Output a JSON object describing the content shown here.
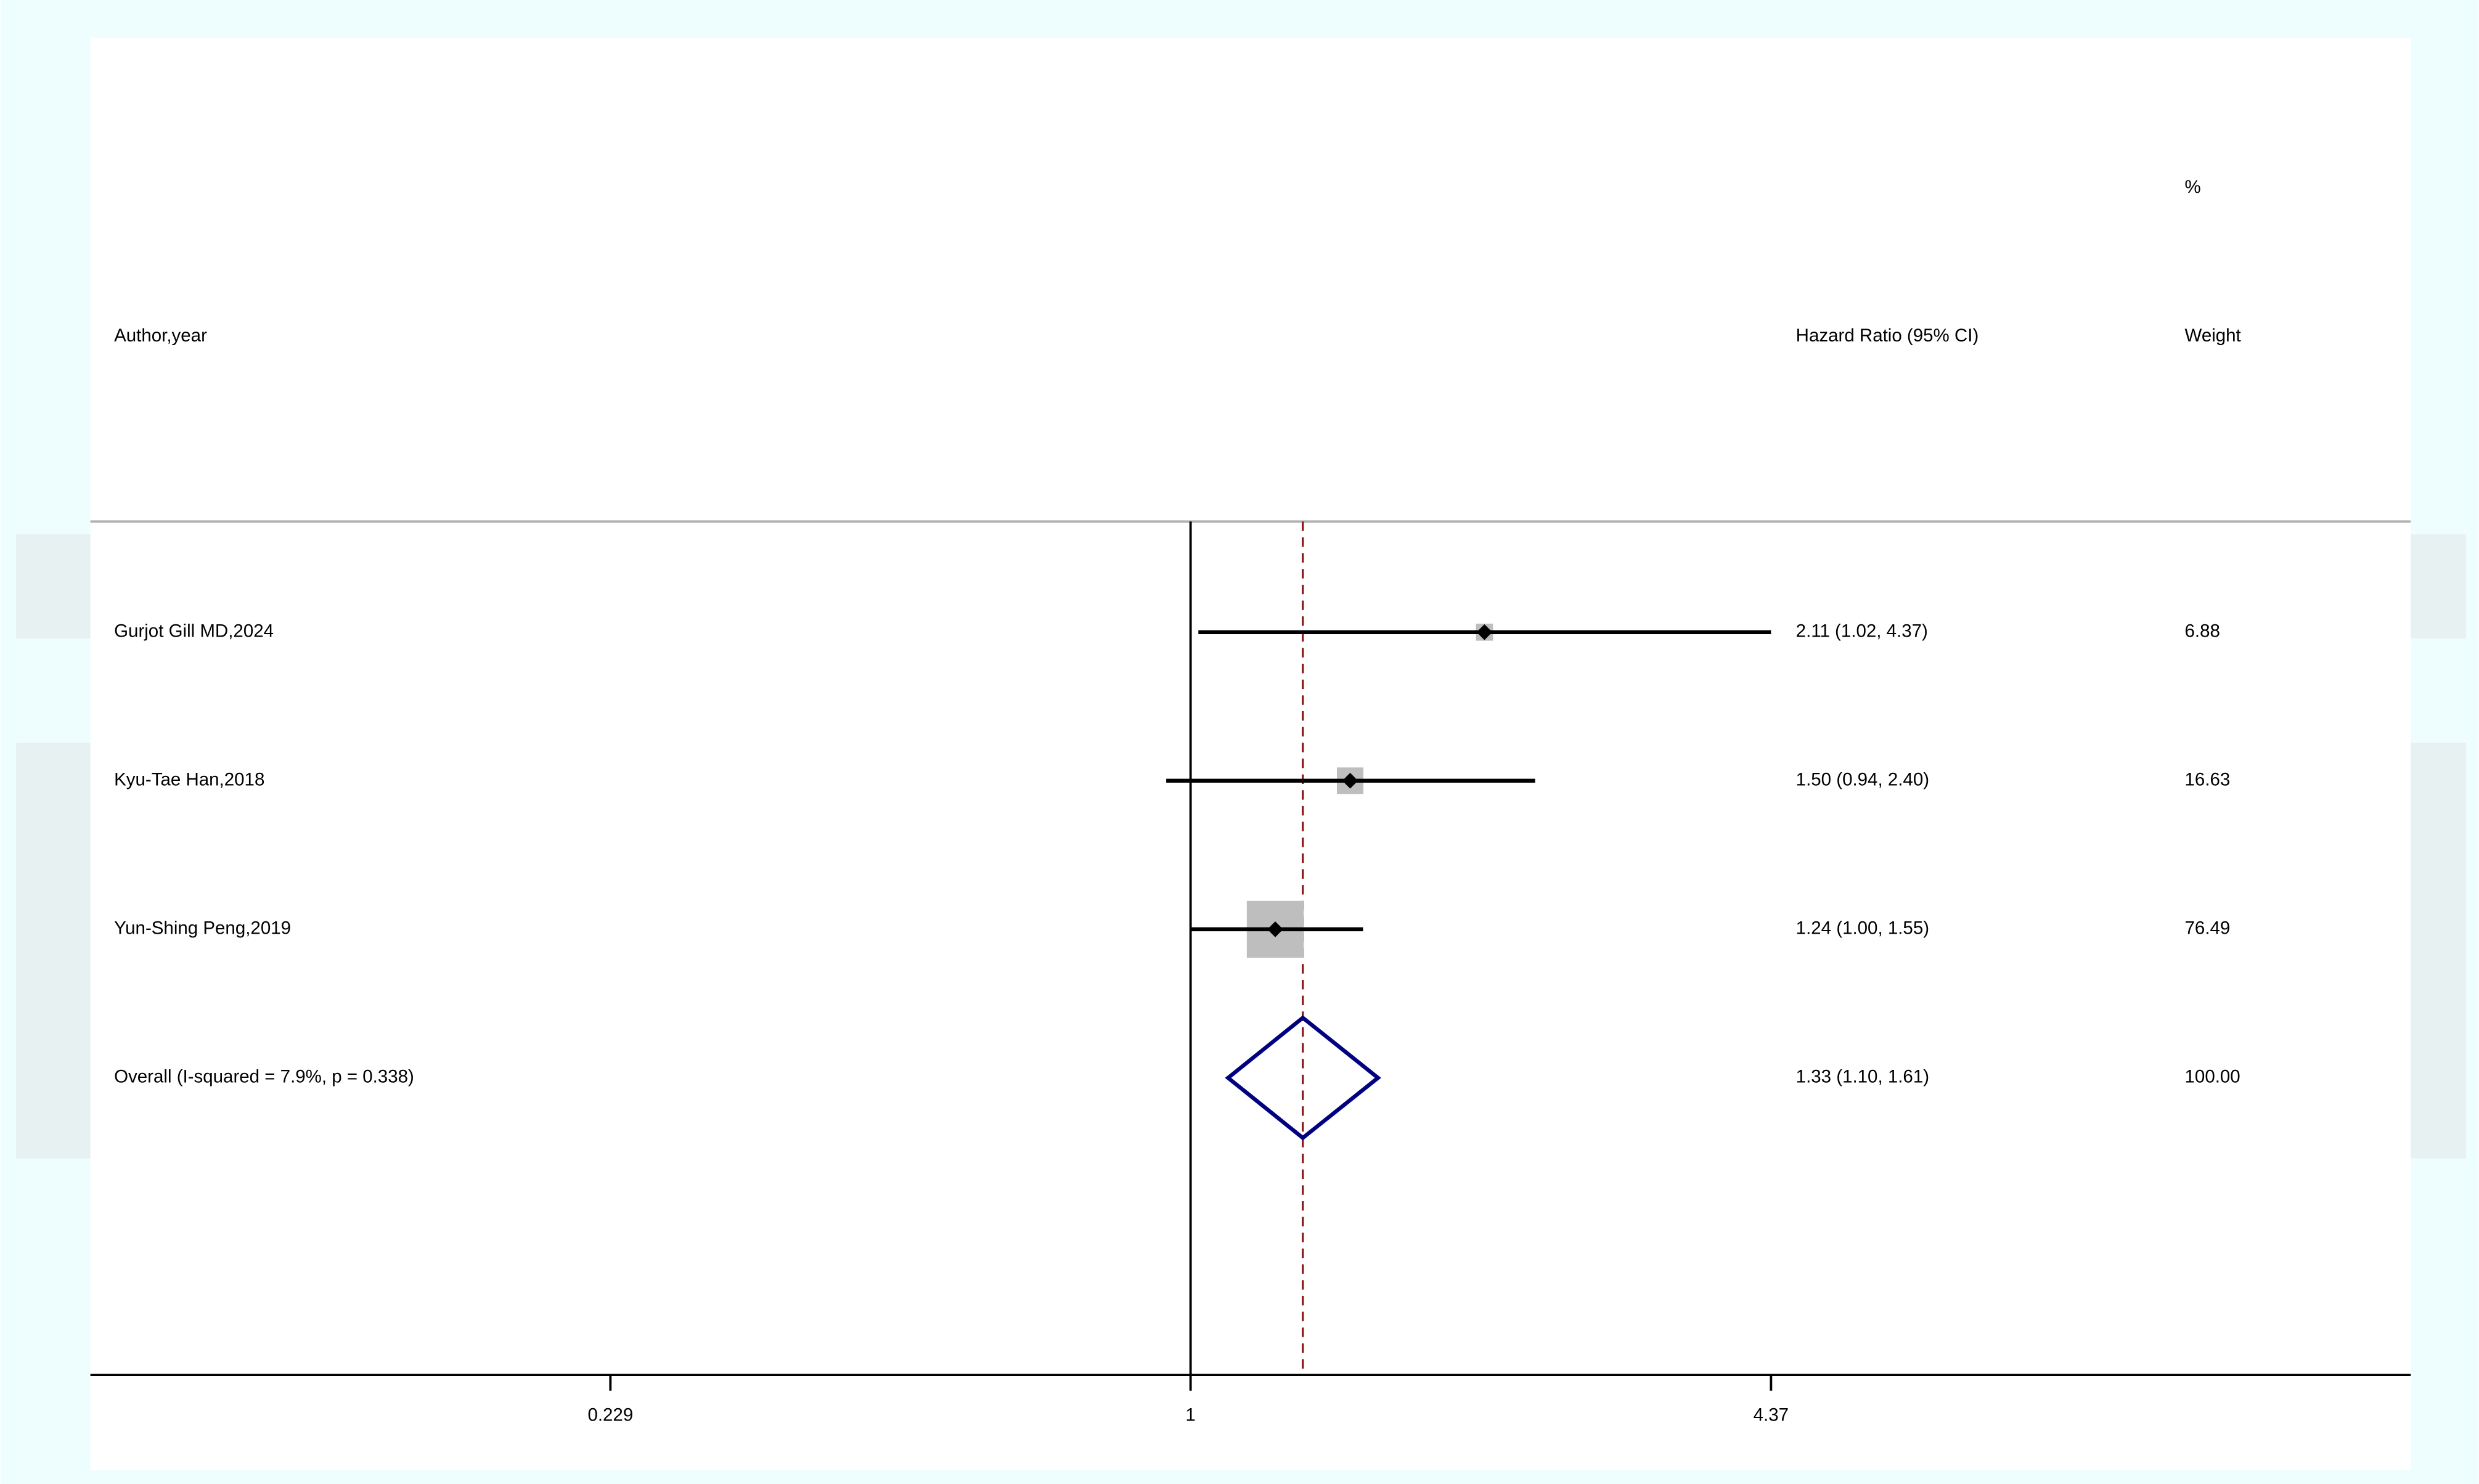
{
  "chart_data": {
    "type": "forest",
    "headers": {
      "study": "Author,year",
      "effect": "Hazard Ratio (95% CI)",
      "weight_top": "%",
      "weight": "Weight"
    },
    "studies": [
      "Gurjot Gill MD,2024",
      "Kyu-Tae Han,2018",
      "Yun-Shing Peng,2019"
    ],
    "values": [
      2.11,
      1.5,
      1.24
    ],
    "lower": [
      1.02,
      0.94,
      1.0
    ],
    "upper": [
      4.37,
      2.4,
      1.55
    ],
    "value_labels": [
      "2.11 (1.02, 4.37)",
      "1.50 (0.94, 2.40)",
      "1.24 (1.00, 1.55)"
    ],
    "weights": [
      6.88,
      16.63,
      76.49
    ],
    "overall": {
      "label": "Overall  (I-squared = 7.9%, p = 0.338)",
      "value": 1.33,
      "lower": 1.1,
      "upper": 1.61,
      "value_label": "1.33 (1.10, 1.61)",
      "weight_label": "100.00"
    },
    "xlim": [
      0.0611,
      22.2
    ],
    "xticks": [
      0.229,
      1,
      4.37
    ],
    "log_x": true,
    "reference_line": 1,
    "box_color": "#bebebe",
    "ci_color": "#000000",
    "diamond_color": "#000080",
    "overall_line_color": "#8b1a1a"
  }
}
